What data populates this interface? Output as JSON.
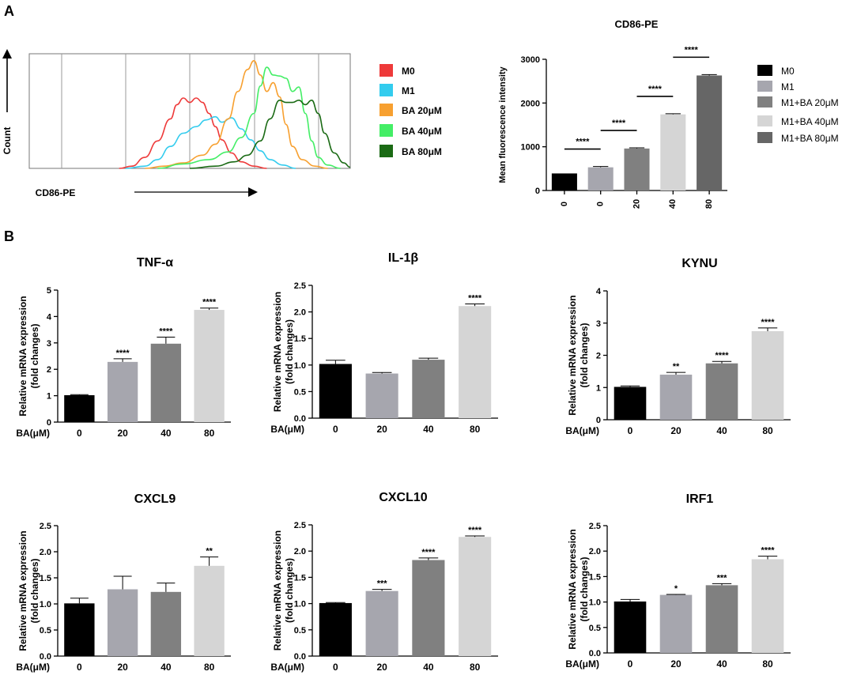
{
  "panel_labels": {
    "a": "A",
    "b": "B"
  },
  "colors": {
    "m0": "#000000",
    "m1": "#a6a6ae",
    "ba20": "#808080",
    "ba40": "#d5d5d5",
    "ba80": "#666666",
    "hist_m0": "#ee3a3a",
    "hist_m1": "#33ccee",
    "hist_ba20": "#f7a030",
    "hist_ba40": "#44ee66",
    "hist_ba80": "#1a6a14"
  },
  "chart_data": [
    {
      "id": "histogram",
      "type": "line",
      "title": "",
      "xlabel": "CD86-PE",
      "ylabel": "Count",
      "legend": [
        {
          "label": "M0",
          "color_key": "hist_m0"
        },
        {
          "label": "M1",
          "color_key": "hist_m1"
        },
        {
          "label": "BA 20μM",
          "color_key": "hist_ba20"
        },
        {
          "label": "BA 40μM",
          "color_key": "hist_ba40"
        },
        {
          "label": "BA 80μM",
          "color_key": "hist_ba80"
        }
      ],
      "x_range": [
        0,
        1
      ],
      "y_range": [
        0,
        1
      ],
      "series": [
        {
          "name": "M0",
          "color_key": "hist_m0",
          "points": [
            [
              0.28,
              0
            ],
            [
              0.32,
              0.02
            ],
            [
              0.36,
              0.1
            ],
            [
              0.4,
              0.25
            ],
            [
              0.44,
              0.45
            ],
            [
              0.46,
              0.58
            ],
            [
              0.48,
              0.64
            ],
            [
              0.5,
              0.6
            ],
            [
              0.52,
              0.64
            ],
            [
              0.54,
              0.6
            ],
            [
              0.56,
              0.5
            ],
            [
              0.58,
              0.38
            ],
            [
              0.6,
              0.26
            ],
            [
              0.63,
              0.14
            ],
            [
              0.66,
              0.06
            ],
            [
              0.7,
              0.02
            ],
            [
              0.74,
              0
            ]
          ]
        },
        {
          "name": "M1",
          "color_key": "hist_m1",
          "points": [
            [
              0.3,
              0
            ],
            [
              0.36,
              0.02
            ],
            [
              0.4,
              0.08
            ],
            [
              0.44,
              0.2
            ],
            [
              0.48,
              0.32
            ],
            [
              0.52,
              0.38
            ],
            [
              0.55,
              0.44
            ],
            [
              0.58,
              0.47
            ],
            [
              0.6,
              0.42
            ],
            [
              0.63,
              0.46
            ],
            [
              0.66,
              0.36
            ],
            [
              0.69,
              0.26
            ],
            [
              0.72,
              0.16
            ],
            [
              0.75,
              0.08
            ],
            [
              0.79,
              0.03
            ],
            [
              0.83,
              0
            ]
          ]
        },
        {
          "name": "BA 20μM",
          "color_key": "hist_ba20",
          "points": [
            [
              0.36,
              0
            ],
            [
              0.42,
              0.02
            ],
            [
              0.48,
              0.05
            ],
            [
              0.54,
              0.12
            ],
            [
              0.58,
              0.22
            ],
            [
              0.62,
              0.45
            ],
            [
              0.65,
              0.7
            ],
            [
              0.68,
              0.9
            ],
            [
              0.7,
              0.98
            ],
            [
              0.72,
              0.85
            ],
            [
              0.74,
              0.7
            ],
            [
              0.76,
              0.78
            ],
            [
              0.78,
              0.65
            ],
            [
              0.8,
              0.4
            ],
            [
              0.82,
              0.2
            ],
            [
              0.85,
              0.08
            ],
            [
              0.89,
              0.02
            ],
            [
              0.93,
              0
            ]
          ]
        },
        {
          "name": "BA 40μM",
          "color_key": "hist_ba40",
          "points": [
            [
              0.4,
              0
            ],
            [
              0.48,
              0.04
            ],
            [
              0.56,
              0.08
            ],
            [
              0.62,
              0.15
            ],
            [
              0.66,
              0.28
            ],
            [
              0.7,
              0.5
            ],
            [
              0.72,
              0.75
            ],
            [
              0.74,
              0.92
            ],
            [
              0.76,
              0.85
            ],
            [
              0.78,
              0.84
            ],
            [
              0.8,
              0.82
            ],
            [
              0.82,
              0.7
            ],
            [
              0.84,
              0.74
            ],
            [
              0.86,
              0.5
            ],
            [
              0.88,
              0.25
            ],
            [
              0.9,
              0.1
            ],
            [
              0.93,
              0.03
            ],
            [
              0.97,
              0
            ]
          ]
        },
        {
          "name": "BA 80μM",
          "color_key": "hist_ba80",
          "points": [
            [
              0.5,
              0
            ],
            [
              0.58,
              0.02
            ],
            [
              0.64,
              0.06
            ],
            [
              0.68,
              0.12
            ],
            [
              0.72,
              0.25
            ],
            [
              0.75,
              0.45
            ],
            [
              0.78,
              0.62
            ],
            [
              0.8,
              0.6
            ],
            [
              0.82,
              0.6
            ],
            [
              0.84,
              0.62
            ],
            [
              0.86,
              0.58
            ],
            [
              0.88,
              0.62
            ],
            [
              0.9,
              0.5
            ],
            [
              0.92,
              0.32
            ],
            [
              0.95,
              0.14
            ],
            [
              0.98,
              0.05
            ],
            [
              1.0,
              0.01
            ]
          ]
        }
      ]
    },
    {
      "id": "mfi",
      "type": "bar",
      "title": "CD86-PE",
      "ylabel": "Mean fluorescence intensity",
      "xlabel": "",
      "categories": [
        "0",
        "0",
        "20",
        "40",
        "80"
      ],
      "values": [
        390,
        530,
        960,
        1740,
        2630
      ],
      "errors": [
        0,
        20,
        15,
        15,
        20
      ],
      "ylim": [
        0,
        3000
      ],
      "yticks": [
        "0",
        "1000",
        "2000",
        "3000"
      ],
      "color_keys": [
        "m0",
        "m1",
        "ba20",
        "ba40",
        "ba80"
      ],
      "legend": [
        "M0",
        "M1",
        "M1+BA 20μM",
        "M1+BA 40μM",
        "M1+BA 80μM"
      ],
      "comparisons": [
        {
          "from": 0,
          "to": 1,
          "label": "****"
        },
        {
          "from": 1,
          "to": 2,
          "label": "****"
        },
        {
          "from": 2,
          "to": 3,
          "label": "****"
        },
        {
          "from": 3,
          "to": 4,
          "label": "****"
        }
      ]
    },
    {
      "id": "tnf",
      "type": "bar",
      "title": "TNF-α",
      "ylabel": "Relative mRNA expression",
      "ylabel2": "(fold changes)",
      "xlabel": "BA(μM)",
      "categories": [
        "0",
        "20",
        "40",
        "80"
      ],
      "values": [
        1.02,
        2.28,
        2.97,
        4.25
      ],
      "errors": [
        0.02,
        0.12,
        0.25,
        0.07
      ],
      "sig": [
        "",
        "****",
        "****",
        "****"
      ],
      "ylim": [
        0,
        5
      ],
      "yticks": [
        "0",
        "1",
        "2",
        "3",
        "4",
        "5"
      ]
    },
    {
      "id": "il1b",
      "type": "bar",
      "title": "IL-1β",
      "ylabel": "Relative mRNA expression",
      "ylabel2": "(fold changes)",
      "xlabel": "BA(μM)",
      "categories": [
        "0",
        "20",
        "40",
        "80"
      ],
      "values": [
        1.02,
        0.84,
        1.1,
        2.11
      ],
      "errors": [
        0.07,
        0.02,
        0.03,
        0.04
      ],
      "sig": [
        "",
        "",
        "",
        "****"
      ],
      "ylim": [
        0,
        2.5
      ],
      "yticks": [
        "0.0",
        "0.5",
        "1.0",
        "1.5",
        "2.0",
        "2.5"
      ]
    },
    {
      "id": "kynu",
      "type": "bar",
      "title": "KYNU",
      "ylabel": "Relative mRNA expression",
      "ylabel2": "(fold changes)",
      "xlabel": "BA(μM)",
      "categories": [
        "0",
        "20",
        "40",
        "80"
      ],
      "values": [
        1.02,
        1.4,
        1.75,
        2.75
      ],
      "errors": [
        0.03,
        0.07,
        0.06,
        0.1
      ],
      "sig": [
        "",
        "**",
        "****",
        "****"
      ],
      "ylim": [
        0,
        4
      ],
      "yticks": [
        "0",
        "1",
        "2",
        "3",
        "4"
      ]
    },
    {
      "id": "cxcl9",
      "type": "bar",
      "title": "CXCL9",
      "ylabel": "Relative mRNA expression",
      "ylabel2": "(fold changes)",
      "xlabel": "BA(μM)",
      "categories": [
        "0",
        "20",
        "40",
        "80"
      ],
      "values": [
        1.01,
        1.28,
        1.23,
        1.73
      ],
      "errors": [
        0.1,
        0.25,
        0.17,
        0.17
      ],
      "sig": [
        "",
        "",
        "",
        "**"
      ],
      "ylim": [
        0,
        2.5
      ],
      "yticks": [
        "0.0",
        "0.5",
        "1.0",
        "1.5",
        "2.0",
        "2.5"
      ]
    },
    {
      "id": "cxcl10",
      "type": "bar",
      "title": "CXCL10",
      "ylabel": "Relative mRNA expression",
      "ylabel2": "(fold changes)",
      "xlabel": "BA(μM)",
      "categories": [
        "0",
        "20",
        "40",
        "80"
      ],
      "values": [
        1.01,
        1.24,
        1.83,
        2.27
      ],
      "errors": [
        0.01,
        0.03,
        0.04,
        0.02
      ],
      "sig": [
        "",
        "***",
        "****",
        "****"
      ],
      "ylim": [
        0,
        2.5
      ],
      "yticks": [
        "0.0",
        "0.5",
        "1.0",
        "1.5",
        "2.0",
        "2.5"
      ]
    },
    {
      "id": "irf1",
      "type": "bar",
      "title": "IRF1",
      "ylabel": "Relative mRNA expression",
      "ylabel2": "(fold changes)",
      "xlabel": "BA(μM)",
      "categories": [
        "0",
        "20",
        "40",
        "80"
      ],
      "values": [
        1.01,
        1.14,
        1.33,
        1.84
      ],
      "errors": [
        0.04,
        0.01,
        0.03,
        0.06
      ],
      "sig": [
        "",
        "*",
        "***",
        "****"
      ],
      "ylim": [
        0,
        2.5
      ],
      "yticks": [
        "0.0",
        "0.5",
        "1.0",
        "1.5",
        "2.0",
        "2.5"
      ]
    }
  ]
}
